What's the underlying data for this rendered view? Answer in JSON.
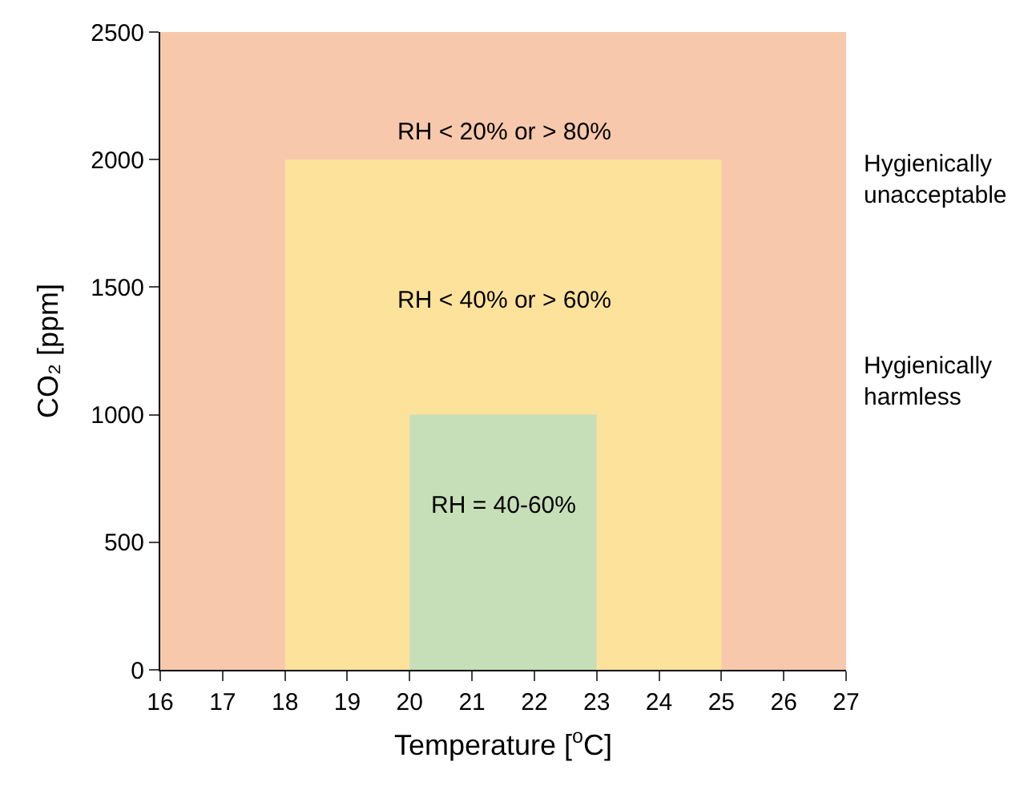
{
  "chart_data": {
    "type": "area",
    "xlabel": "Temperature [$^{o}$C]",
    "ylabel": "CO₂ [ppm]",
    "series": [
      {
        "x": [
          16,
          27
        ],
        "values": [
          2500,
          2500
        ],
        "color": "#f7c8ab"
      },
      {
        "x": [
          18,
          25
        ],
        "values": [
          2000,
          2000
        ],
        "color": "#fde29c"
      },
      {
        "x": [
          20,
          23
        ],
        "values": [
          1000,
          1000
        ],
        "color": "#c6dfb8"
      }
    ],
    "xlim": [
      16,
      27
    ],
    "xticks": [
      16,
      17,
      18,
      19,
      20,
      21,
      22,
      23,
      24,
      25,
      26,
      27
    ],
    "ylim": [
      0,
      2500
    ],
    "yticks": [
      0,
      500,
      1000,
      1500,
      2000,
      2500
    ],
    "annotations": [
      "RH < 20% or > 80%",
      "RH < 40% or > 60%",
      "RH = 40-60%",
      "Hygienically\nunacceptable",
      "Hygienically\nharmless"
    ]
  }
}
